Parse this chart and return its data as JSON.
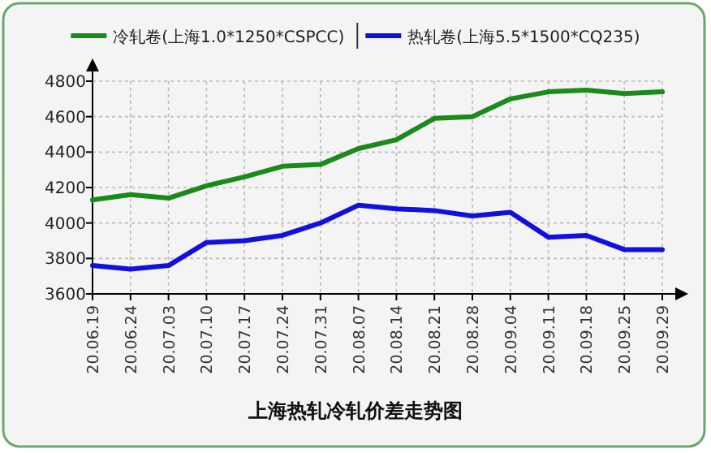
{
  "chart_data": {
    "type": "line",
    "title": "上海热轧冷轧价差走势图",
    "categories": [
      "20.06.19",
      "20.06.24",
      "20.07.03",
      "20.07.10",
      "20.07.17",
      "20.07.24",
      "20.07.31",
      "20.08.07",
      "20.08.14",
      "20.08.21",
      "20.08.28",
      "20.09.04",
      "20.09.11",
      "20.09.18",
      "20.09.25",
      "20.09.29"
    ],
    "series": [
      {
        "name": "冷轧卷(上海1.0*1250*CSPCC)",
        "color": "#1a8a1a",
        "values": [
          4130,
          4160,
          4140,
          4210,
          4260,
          4320,
          4330,
          4420,
          4470,
          4590,
          4600,
          4700,
          4740,
          4750,
          4730,
          4740
        ]
      },
      {
        "name": "热轧卷(上海5.5*1500*CQ235)",
        "color": "#1010e0",
        "values": [
          3760,
          3740,
          3760,
          3890,
          3900,
          3930,
          4000,
          4100,
          4080,
          4070,
          4040,
          4060,
          3920,
          3930,
          3850,
          3850
        ]
      }
    ],
    "ylim": [
      3600,
      4800
    ],
    "yticks": [
      3600,
      3800,
      4000,
      4200,
      4400,
      4600,
      4800
    ],
    "grid": true,
    "legend": "top",
    "line_style": "solid",
    "marker": "none"
  }
}
